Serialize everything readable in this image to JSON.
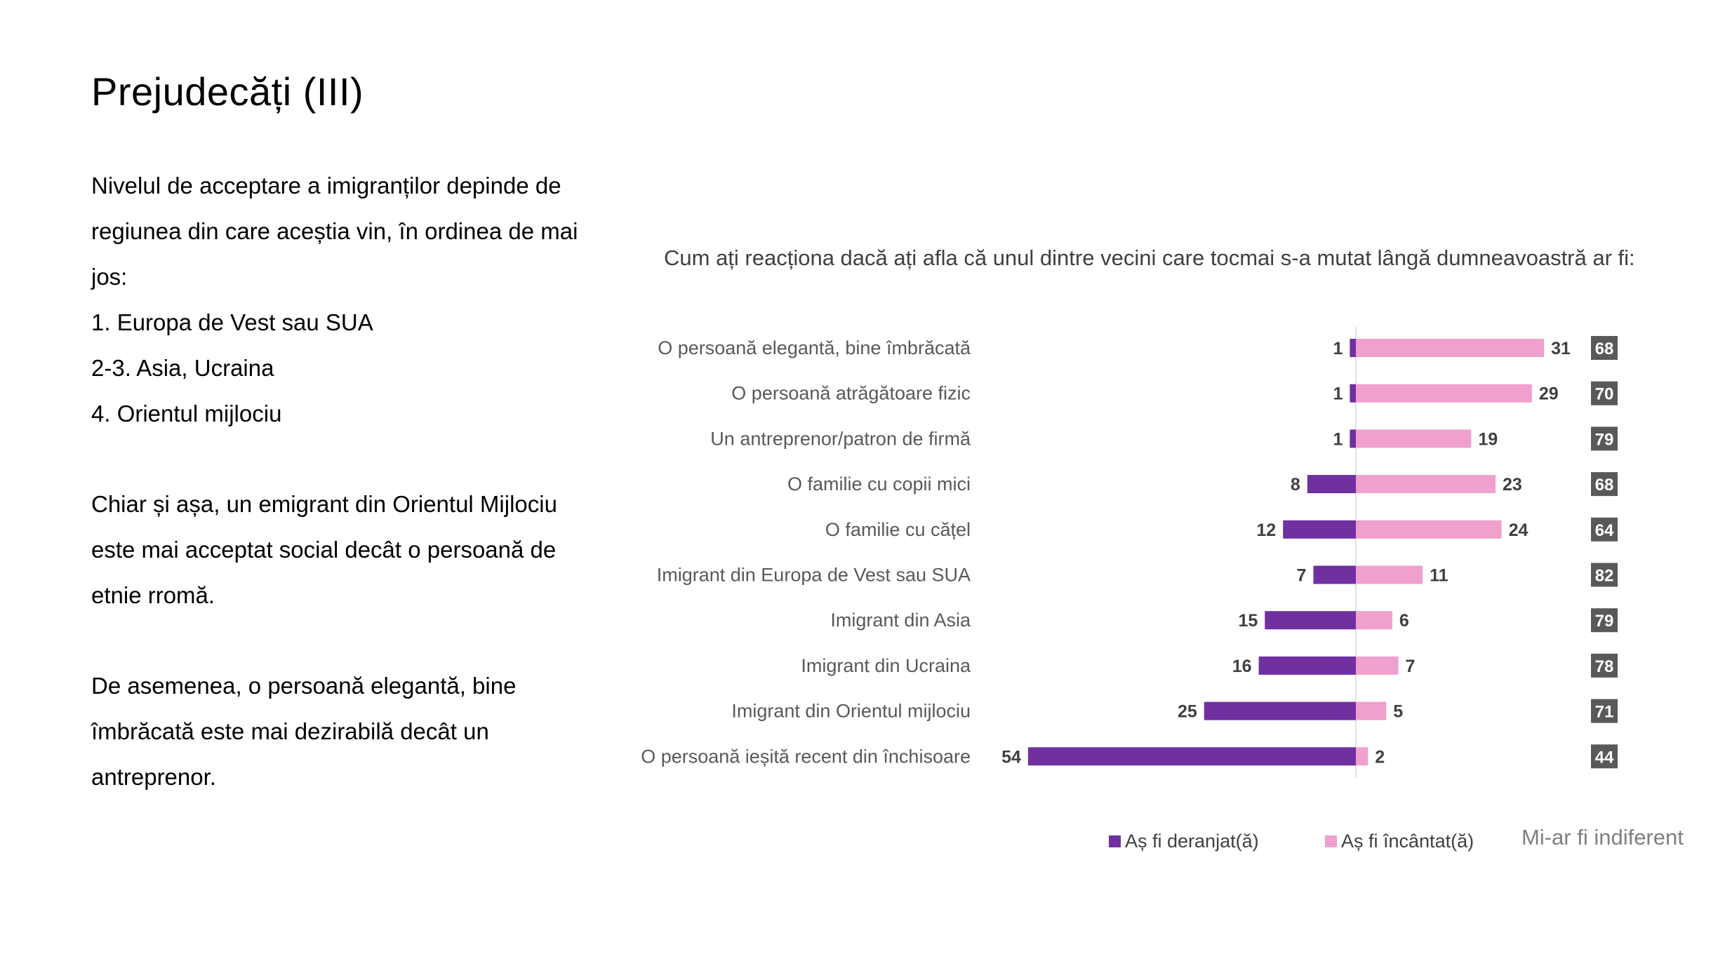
{
  "slide": {
    "title": "Prejudecăți (III)",
    "paragraphs": [
      [
        "Nivelul de acceptare a imigranților depinde de regiunea din care aceștia vin, în ordinea de mai jos:",
        "1. Europa de Vest sau SUA",
        "2-3. Asia, Ucraina",
        "4. Orientul mijlociu"
      ],
      [
        "Chiar și așa, un emigrant din Orientul Mijlociu este mai acceptat social decât o persoană de etnie rromă."
      ],
      [
        "De asemenea, o persoană elegantă, bine îmbrăcată este mai dezirabilă decât un antreprenor."
      ]
    ]
  },
  "chart_data": {
    "type": "bar",
    "title": "Cum ați reacționa dacă ați afla că unul dintre vecini care tocmai s-a mutat lângă dumneavoastră ar fi:",
    "categories": [
      "O persoană elegantă, bine îmbrăcată",
      "O persoană atrăgătoare fizic",
      "Un antreprenor/patron de firmă",
      "O familie cu copii mici",
      "O familie cu cățel",
      "Imigrant din Europa de Vest sau SUA",
      "Imigrant din Asia",
      "Imigrant din Ucraina",
      "Imigrant din Orientul mijlociu",
      "O persoană ieșită recent din închisoare"
    ],
    "series": [
      {
        "name": "Aș fi deranjat(ă)",
        "color": "#7030a0",
        "values": [
          1,
          1,
          1,
          8,
          12,
          7,
          15,
          16,
          25,
          54
        ]
      },
      {
        "name": "Aș fi încântat(ă)",
        "color": "#f0a0cc",
        "values": [
          31,
          29,
          19,
          23,
          24,
          11,
          6,
          7,
          5,
          2
        ]
      },
      {
        "name": "Mi-ar fi indiferent",
        "color": "#595959",
        "values": [
          68,
          70,
          79,
          68,
          64,
          82,
          79,
          78,
          71,
          44
        ]
      }
    ],
    "legend_position": "bottom"
  }
}
